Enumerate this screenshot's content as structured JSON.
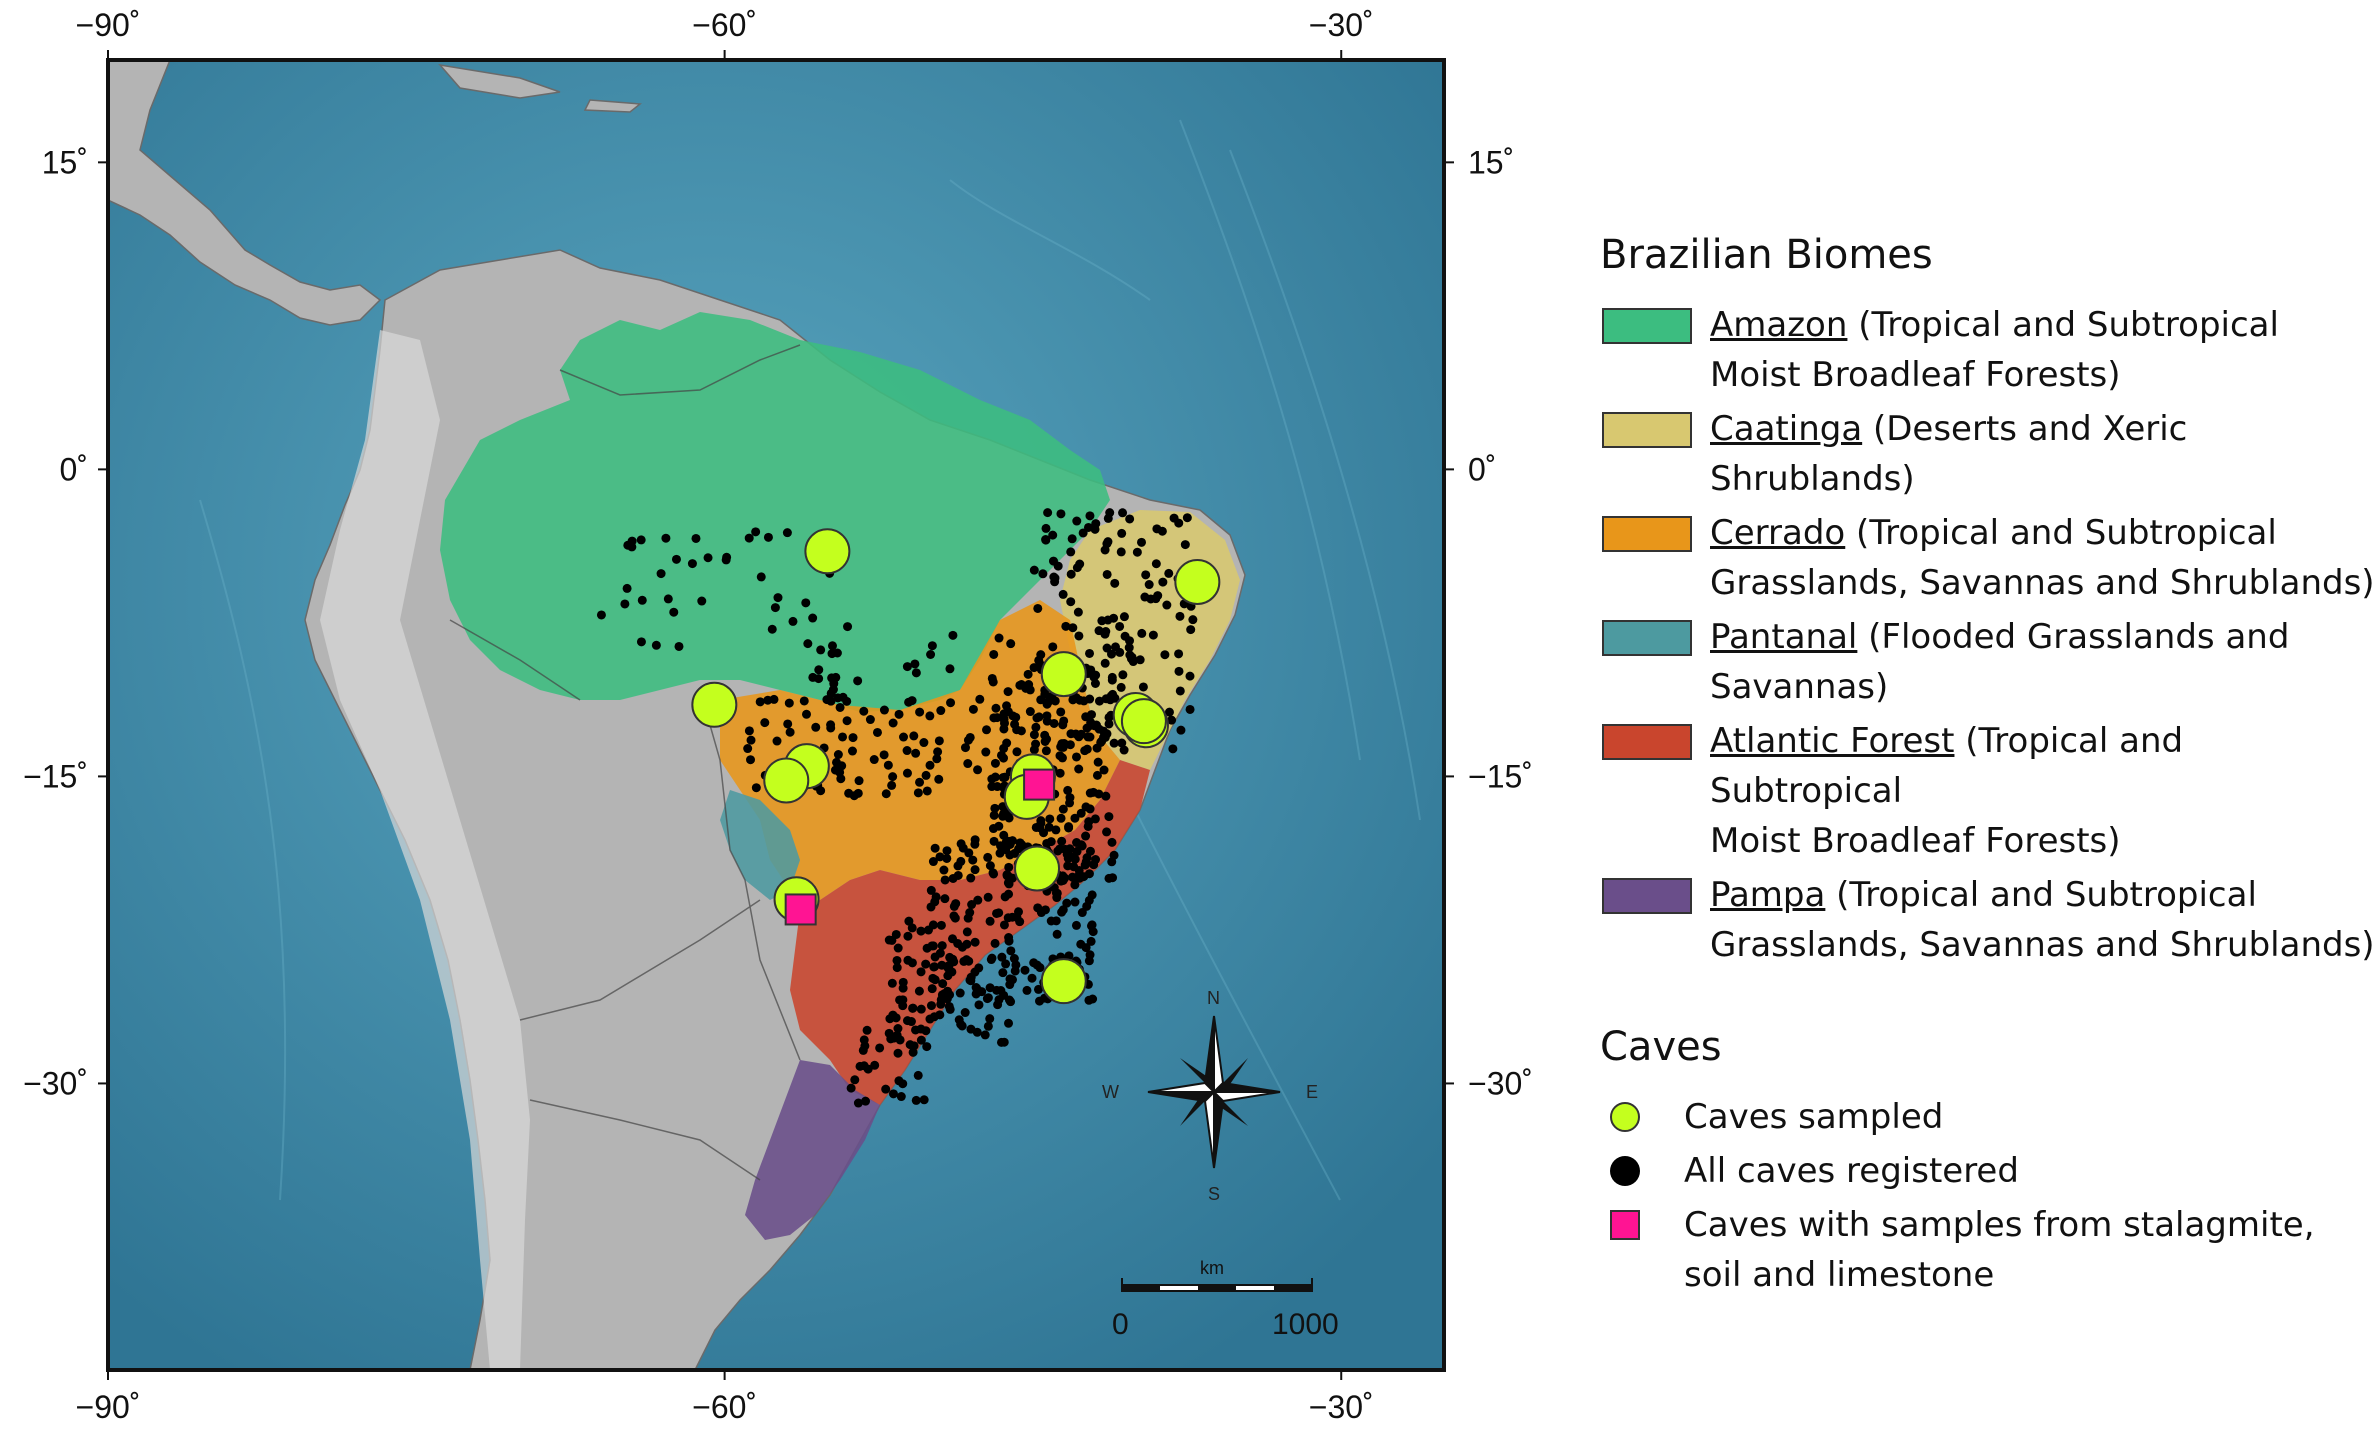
{
  "map": {
    "x_ticks": [
      {
        "value": -90,
        "label": "−90˚"
      },
      {
        "value": -60,
        "label": "−60˚"
      },
      {
        "value": -30,
        "label": "−30˚"
      }
    ],
    "y_ticks": [
      {
        "value": 15,
        "label": "15˚"
      },
      {
        "value": 0,
        "label": "0˚"
      },
      {
        "value": -15,
        "label": "−15˚"
      },
      {
        "value": -30,
        "label": "−30˚"
      }
    ],
    "lon_range": [
      -90,
      -25
    ],
    "lat_range": [
      -44,
      20
    ],
    "ocean_color": "#3f88a6",
    "land_color": "#b4b4b4",
    "caves_sampled": [
      {
        "lon": -55,
        "lat": -4
      },
      {
        "lon": -37,
        "lat": -5.5
      },
      {
        "lon": -43.5,
        "lat": -10
      },
      {
        "lon": -60.5,
        "lat": -11.5
      },
      {
        "lon": -40,
        "lat": -12
      },
      {
        "lon": -39.5,
        "lat": -12.5
      },
      {
        "lon": -56,
        "lat": -14.5
      },
      {
        "lon": -57,
        "lat": -15.2
      },
      {
        "lon": -45,
        "lat": -15
      },
      {
        "lon": -45.3,
        "lat": -16
      },
      {
        "lon": -39.6,
        "lat": -12.3
      },
      {
        "lon": -44.8,
        "lat": -19.5
      },
      {
        "lon": -56.5,
        "lat": -21
      },
      {
        "lon": -43.5,
        "lat": -25
      }
    ],
    "caves_with_samples": [
      {
        "lon": -44.7,
        "lat": -15.4
      },
      {
        "lon": -56.3,
        "lat": -21.5
      }
    ],
    "compass": {
      "n": "N",
      "s": "S",
      "e": "E",
      "w": "W"
    },
    "scale": {
      "unit": "km",
      "min_label": "0",
      "max_label": "1000"
    }
  },
  "legend": {
    "biomes_title": "Brazilian Biomes",
    "biomes": [
      {
        "name": "Amazon",
        "desc": " (Tropical and Subtropical",
        "desc2": "Moist Broadleaf Forests)",
        "color": "#3cbd80"
      },
      {
        "name": "Caatinga",
        "desc": " (Deserts and Xeric Shrublands)",
        "desc2": "",
        "color": "#d8c870"
      },
      {
        "name": "Cerrado",
        "desc": " (Tropical and Subtropical",
        "desc2": "Grasslands, Savannas and Shrublands)",
        "color": "#e8961a"
      },
      {
        "name": "Pantanal",
        "desc": " (Flooded Grasslands and",
        "desc2": "Savannas)",
        "color": "#4d9aa0"
      },
      {
        "name": "Atlantic Forest",
        "desc": " (Tropical and Subtropical",
        "desc2": "Moist Broadleaf Forests)",
        "color": "#c9452d"
      },
      {
        "name": "Pampa",
        "desc": " (Tropical and Subtropical",
        "desc2": "Grasslands, Savannas and Shrublands)",
        "color": "#6a4e8a"
      }
    ],
    "caves_title": "Caves",
    "caves": [
      {
        "label": "Caves sampled",
        "label2": ""
      },
      {
        "label": "All caves registered",
        "label2": ""
      },
      {
        "label": "Caves with samples from stalagmite,",
        "label2": "soil and limestone"
      }
    ],
    "colors": {
      "sampled": "#c4ff1e",
      "registered": "#000000",
      "samples": "#ff1493"
    }
  }
}
